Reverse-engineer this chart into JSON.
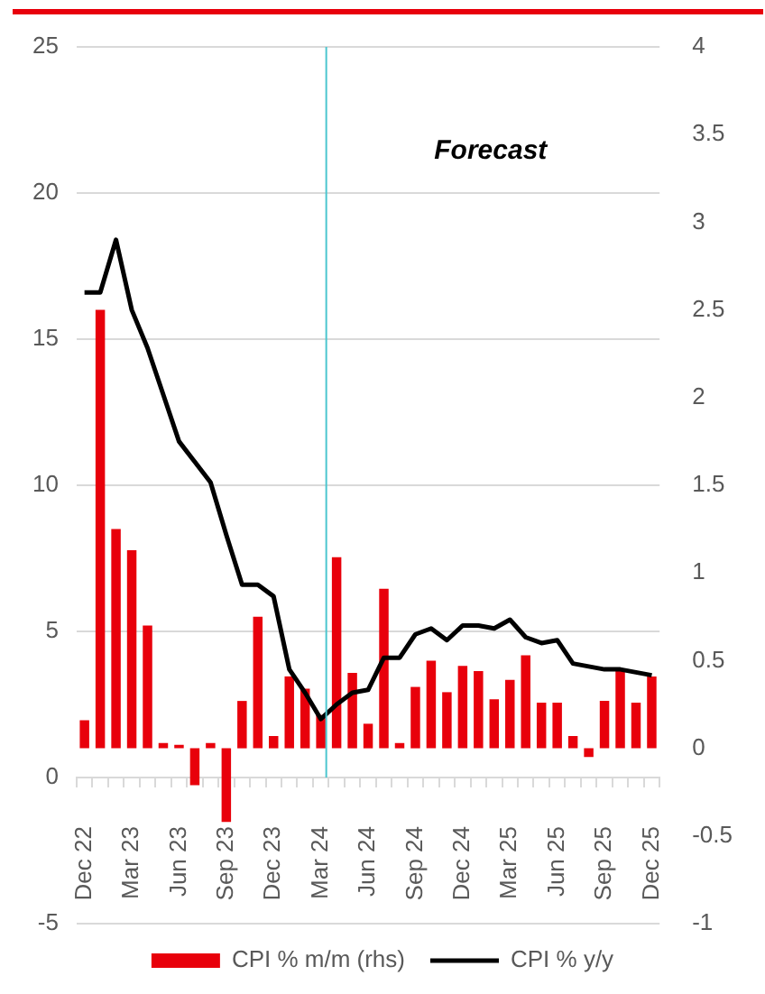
{
  "chart_data": {
    "type": "bar",
    "categories": [
      "Dec 22",
      null,
      null,
      "Mar 23",
      null,
      null,
      "Jun 23",
      null,
      null,
      "Sep 23",
      null,
      null,
      "Dec 23",
      null,
      null,
      "Mar 24",
      null,
      null,
      "Jun 24",
      null,
      null,
      "Sep 24",
      null,
      null,
      "Dec 24",
      null,
      null,
      "Mar 25",
      null,
      null,
      "Jun 25",
      null,
      null,
      "Sep 25",
      null,
      null,
      "Dec 25"
    ],
    "series": [
      {
        "name": "CPI % m/m (rhs)",
        "axis": "y2",
        "color": "#e8000b",
        "values": [
          0.16,
          2.5,
          1.25,
          1.13,
          0.7,
          0.03,
          0.02,
          -0.21,
          0.03,
          -0.42,
          0.27,
          0.75,
          0.07,
          0.41,
          0.34,
          0.19,
          1.09,
          0.43,
          0.14,
          0.91,
          0.03,
          0.35,
          0.5,
          0.32,
          0.47,
          0.44,
          0.28,
          0.39,
          0.53,
          0.26,
          0.26,
          0.07,
          -0.05,
          0.27,
          0.44,
          0.26,
          0.41
        ]
      },
      {
        "name": "CPI % y/y",
        "type": "line",
        "color": "#000000",
        "values": [
          16.6,
          16.6,
          18.4,
          16.0,
          14.7,
          13.1,
          11.5,
          10.8,
          10.1,
          8.3,
          6.6,
          6.6,
          6.2,
          3.7,
          2.9,
          2.0,
          2.5,
          2.9,
          3.0,
          4.1,
          4.1,
          4.9,
          5.1,
          4.7,
          5.2,
          5.2,
          5.1,
          5.4,
          4.8,
          4.6,
          4.7,
          3.9,
          3.8,
          3.7,
          3.7,
          3.6,
          3.5
        ]
      }
    ],
    "ylim": [
      -5,
      25
    ],
    "yticks": [
      -5,
      0,
      5,
      10,
      15,
      20,
      25
    ],
    "y2lim": [
      -1,
      4
    ],
    "y2ticks": [
      -1,
      -0.5,
      0,
      0.5,
      1,
      1.5,
      2,
      2.5,
      3,
      3.5,
      4
    ],
    "ref_lines": [
      {
        "axis": "x",
        "value": "Mar 24",
        "color": "#4bc6cf"
      }
    ],
    "annotations": [
      "Forecast"
    ],
    "grid": "y",
    "legend": "bottom",
    "marker": "none",
    "line_style": "solid"
  }
}
